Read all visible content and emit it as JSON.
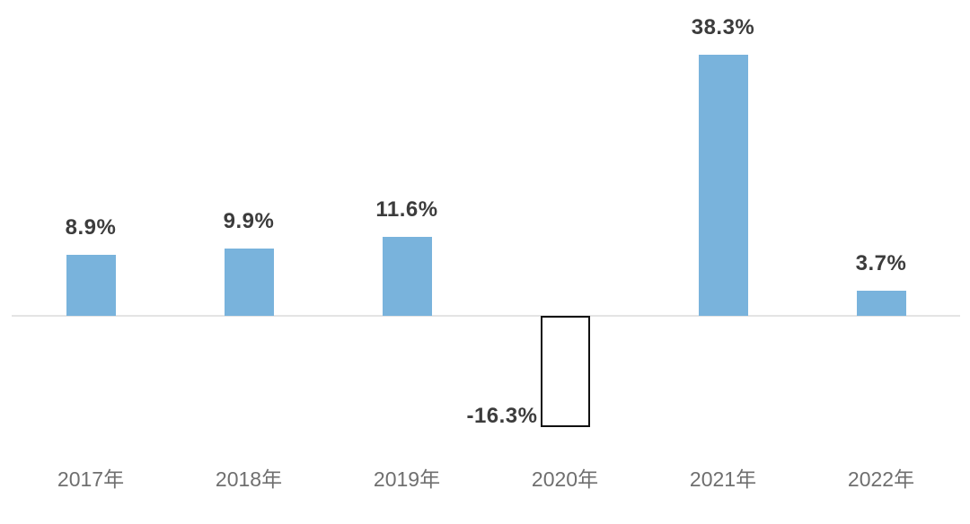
{
  "chart_data": {
    "type": "bar",
    "categories": [
      "2017年",
      "2018年",
      "2019年",
      "2020年",
      "2021年",
      "2022年"
    ],
    "values": [
      8.9,
      9.9,
      11.6,
      -16.3,
      38.3,
      3.7
    ],
    "value_labels": [
      "8.9%",
      "9.9%",
      "11.6%",
      "-16.3%",
      "38.3%",
      "3.7%"
    ],
    "title": "",
    "xlabel": "",
    "ylabel": "",
    "ylim": [
      -20,
      42
    ],
    "grid": false,
    "legend": "none",
    "baseline": 0,
    "colors": {
      "positive_bar": "#79b3dc",
      "negative_bar_fill": "#ffffff",
      "negative_bar_border": "#111111",
      "axis_line": "#e4e4e4",
      "value_label": "#3c3c3c",
      "category_label": "#6f6f6f",
      "background": "#ffffff"
    }
  }
}
